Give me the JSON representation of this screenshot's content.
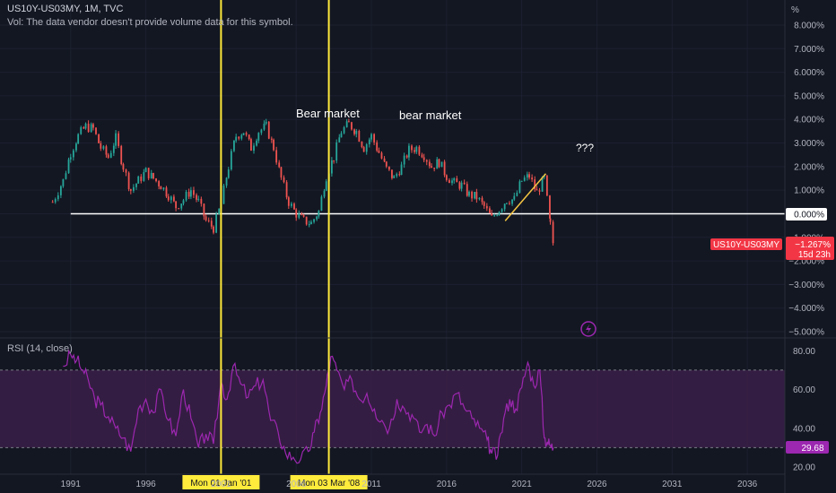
{
  "header": {
    "symbol_line": "US10Y-US03MY, 1M, TVC",
    "volume_note": "Vol: The data vendor doesn't provide volume data for this symbol."
  },
  "rsi": {
    "label": "RSI (14, close)",
    "current_value": "29.68"
  },
  "price_axis": {
    "unit_label": "%",
    "current_value_label": "−1.267%",
    "countdown_label": "15d 23h",
    "symbol_tag": "US10Y-US03MY",
    "zero_label": "0.000%"
  },
  "annotations": {
    "bear_market_1": "Bear market",
    "bear_market_2": "bear market",
    "question": "???"
  },
  "vertical_markers": [
    {
      "label": "Mon 01 Jan '01",
      "x": 2001.0
    },
    {
      "label": "Mon 03 Mar '08",
      "x": 2008.17
    }
  ],
  "colors": {
    "background": "#131722",
    "up_candle": "#26a69a",
    "down_candle": "#ef5350",
    "marker_yellow": "#ffeb3b",
    "rsi_line": "#9c27b0",
    "rsi_band": "#3b1f48",
    "price_tag": "#f23645"
  },
  "chart_data": {
    "type": "line",
    "title": "",
    "xlabel": "",
    "ylabel": "",
    "x_ticks": [
      "1991",
      "1996",
      "2001",
      "2006",
      "2011",
      "2016",
      "2021",
      "2026",
      "2031",
      "2036"
    ],
    "x_range": [
      1986.3,
      2038.5
    ],
    "price_y_ticks": [
      "8.000%",
      "7.000%",
      "6.000%",
      "5.000%",
      "4.000%",
      "3.000%",
      "2.000%",
      "1.000%",
      "0.000%",
      "−1.000%",
      "−2.000%",
      "−3.000%",
      "−4.000%",
      "−5.000%"
    ],
    "price_ylim": [
      -5,
      8
    ],
    "rsi_y_ticks": [
      "80.00",
      "60.00",
      "40.00",
      "20.00"
    ],
    "rsi_ylim": [
      20,
      82
    ],
    "rsi_band": [
      30,
      70
    ],
    "series": [
      {
        "type": "candlestick",
        "x": [
          1989.8,
          1990.5,
          1991.0,
          1991.5,
          1992.0,
          1992.5,
          1993.0,
          1993.5,
          1994.0,
          1994.5,
          1995.0,
          1995.5,
          1996.0,
          1996.5,
          1997.0,
          1997.5,
          1998.0,
          1998.5,
          1999.0,
          1999.5,
          2000.0,
          2000.5,
          2001.0,
          2001.5,
          2002.0,
          2002.5,
          2003.0,
          2003.5,
          2004.0,
          2004.5,
          2005.0,
          2005.5,
          2006.0,
          2006.5,
          2007.0,
          2007.5,
          2008.0,
          2008.5,
          2009.0,
          2009.5,
          2010.0,
          2010.5,
          2011.0,
          2011.5,
          2012.0,
          2012.5,
          2013.0,
          2013.5,
          2014.0,
          2014.5,
          2015.0,
          2015.5,
          2016.0,
          2016.5,
          2017.0,
          2017.5,
          2018.0,
          2018.5,
          2019.0,
          2019.5,
          2020.0,
          2020.5,
          2021.0,
          2021.5,
          2022.0,
          2022.5,
          2022.9,
          2023.1
        ],
        "close": [
          0.5,
          1.4,
          2.6,
          3.3,
          3.7,
          3.6,
          2.8,
          2.4,
          3.2,
          2.0,
          1.0,
          1.4,
          1.8,
          1.5,
          1.2,
          0.8,
          0.3,
          0.6,
          1.0,
          0.5,
          -0.3,
          -0.6,
          0.4,
          2.0,
          3.3,
          3.5,
          2.8,
          3.5,
          3.7,
          2.8,
          1.5,
          0.5,
          0.0,
          -0.3,
          -0.4,
          0.1,
          1.6,
          2.4,
          3.5,
          3.8,
          3.5,
          2.8,
          3.3,
          2.6,
          1.9,
          1.5,
          2.0,
          2.7,
          2.8,
          2.5,
          2.0,
          2.2,
          1.6,
          1.3,
          1.2,
          0.8,
          0.7,
          0.3,
          -0.2,
          0.2,
          0.6,
          0.6,
          1.4,
          1.6,
          0.9,
          1.5,
          -0.5,
          -1.3
        ]
      },
      {
        "name": "RSI (14, close)",
        "x": [
          1990.5,
          1991.0,
          1991.4,
          1991.8,
          1992.2,
          1992.6,
          1993.0,
          1993.5,
          1994.0,
          1994.5,
          1995.0,
          1995.5,
          1996.0,
          1996.5,
          1997.0,
          1997.5,
          1998.0,
          1998.5,
          1999.0,
          1999.5,
          2000.0,
          2000.5,
          2001.0,
          2001.4,
          2001.8,
          2002.3,
          2002.8,
          2003.3,
          2003.8,
          2004.3,
          2004.8,
          2005.3,
          2005.8,
          2006.3,
          2006.8,
          2007.2,
          2007.6,
          2008.0,
          2008.3,
          2008.7,
          2009.2,
          2009.7,
          2010.2,
          2010.7,
          2011.2,
          2011.7,
          2012.2,
          2012.7,
          2013.2,
          2013.7,
          2014.2,
          2014.7,
          2015.2,
          2015.7,
          2016.2,
          2016.7,
          2017.2,
          2017.7,
          2018.2,
          2018.7,
          2019.0,
          2019.4,
          2019.8,
          2020.2,
          2020.6,
          2021.0,
          2021.4,
          2021.8,
          2022.2,
          2022.5,
          2022.7,
          2022.9,
          2023.1
        ],
        "values": [
          72,
          78,
          75,
          70,
          64,
          55,
          52,
          46,
          40,
          35,
          28,
          50,
          55,
          48,
          60,
          44,
          36,
          60,
          45,
          30,
          37,
          32,
          64,
          55,
          72,
          63,
          56,
          62,
          65,
          44,
          38,
          27,
          25,
          24,
          28,
          38,
          48,
          62,
          77,
          70,
          60,
          65,
          55,
          58,
          50,
          44,
          40,
          55,
          50,
          47,
          38,
          42,
          36,
          48,
          52,
          58,
          50,
          45,
          40,
          34,
          27,
          26,
          45,
          55,
          50,
          61,
          74,
          62,
          70,
          35,
          33,
          31,
          30
        ]
      }
    ],
    "annotations": [
      {
        "type": "horizontal_line",
        "y": 0.0
      },
      {
        "type": "trend_line",
        "from": [
          2019.9,
          -0.3
        ],
        "to": [
          2022.6,
          1.7
        ]
      }
    ]
  }
}
